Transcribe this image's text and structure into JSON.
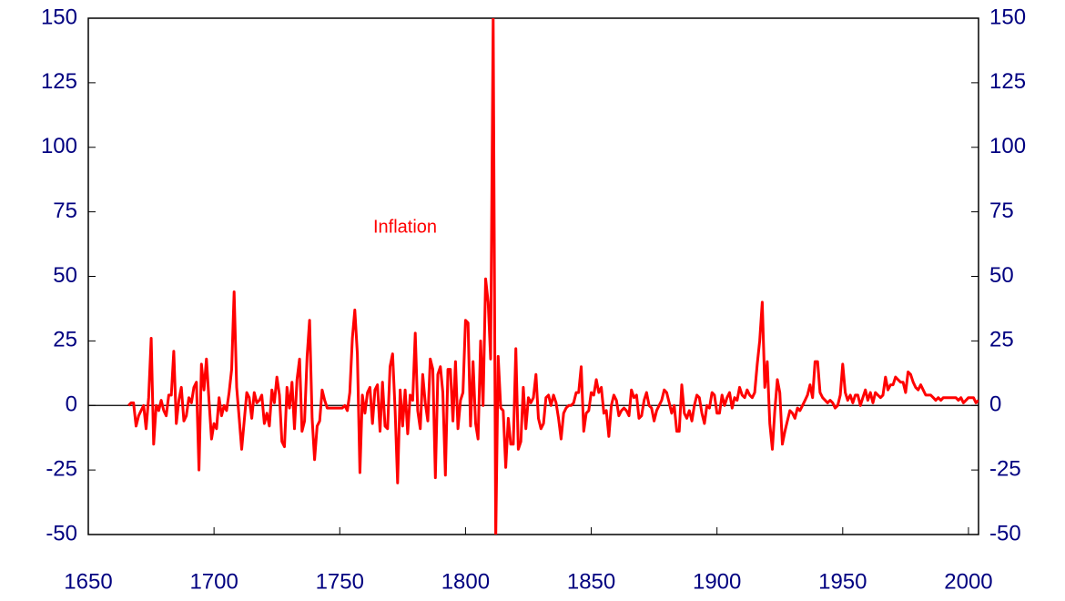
{
  "chart_data": {
    "type": "line",
    "series": [
      {
        "name": "Inflation",
        "color": "#ff0000",
        "values": [
          0,
          1,
          1,
          -8,
          -4,
          -2,
          0,
          -9,
          3,
          26,
          -15,
          0,
          -2,
          2,
          -2,
          -4,
          4,
          4,
          21,
          -7,
          2,
          7,
          -6,
          -4,
          3,
          1,
          7,
          9,
          -25,
          16,
          6,
          18,
          2,
          -13,
          -7,
          -9,
          3,
          -4,
          0,
          -2,
          5,
          14,
          44,
          7,
          -5,
          -17,
          -6,
          5,
          3,
          -5,
          5,
          1,
          2,
          4,
          -7,
          -3,
          -8,
          6,
          1,
          11,
          4,
          -14,
          -16,
          7,
          -1,
          9,
          -9,
          10,
          18,
          -10,
          -6,
          19,
          33,
          -5,
          -21,
          -8,
          -6,
          6,
          2,
          -1,
          -1,
          -1,
          -1,
          -1,
          -1,
          -1,
          0,
          -2,
          5,
          26,
          37,
          20,
          -26,
          4,
          -3,
          5,
          7,
          -7,
          6,
          8,
          -10,
          9,
          -8,
          -9,
          15,
          20,
          -2,
          -30,
          6,
          -8,
          6,
          -11,
          4,
          2,
          28,
          -2,
          -9,
          12,
          1,
          -6,
          18,
          14,
          -28,
          12,
          15,
          5,
          -27,
          14,
          14,
          -6,
          17,
          -9,
          2,
          5,
          33,
          32,
          -8,
          17,
          -7,
          -13,
          25,
          0,
          49,
          40,
          18,
          150,
          -52,
          19,
          -1,
          -2,
          -24,
          -5,
          -15,
          -15,
          22,
          -17,
          -14,
          7,
          -9,
          3,
          1,
          3,
          12,
          -5,
          -9,
          -7,
          3,
          4,
          0,
          4,
          1,
          -5,
          -13,
          -3,
          -1,
          0,
          0,
          1,
          5,
          5,
          15,
          -10,
          -3,
          -2,
          5,
          4,
          10,
          5,
          7,
          -3,
          -2,
          -12,
          0,
          4,
          2,
          -4,
          -2,
          -1,
          -2,
          -4,
          6,
          3,
          4,
          -5,
          -4,
          2,
          5,
          0,
          -1,
          -6,
          -2,
          0,
          2,
          6,
          5,
          1,
          -3,
          0,
          -10,
          -10,
          8,
          -3,
          -5,
          -2,
          -6,
          0,
          4,
          3,
          -3,
          -7,
          0,
          -1,
          5,
          4,
          -3,
          -3,
          4,
          0,
          3,
          5,
          -1,
          3,
          2,
          7,
          4,
          3,
          6,
          4,
          3,
          5,
          16,
          25,
          40,
          7,
          17,
          -7,
          -17,
          -2,
          10,
          5,
          -15,
          -10,
          -6,
          -2,
          -3,
          -5,
          -1,
          -2,
          0,
          2,
          4,
          8,
          3,
          17,
          17,
          5,
          3,
          2,
          1,
          2,
          1,
          -1,
          0,
          4,
          16,
          5,
          2,
          4,
          1,
          4,
          4,
          0,
          3,
          6,
          2,
          5,
          1,
          5,
          4,
          3,
          4,
          11,
          6,
          8,
          8,
          11,
          10,
          9,
          9,
          5,
          13,
          12,
          9,
          7,
          6,
          8,
          6,
          4,
          4,
          4,
          3,
          2,
          3,
          2,
          3,
          3,
          3,
          3,
          3,
          3,
          2,
          3,
          1,
          2,
          3,
          3,
          3,
          1,
          2
        ]
      }
    ],
    "x": [
      1666,
      1667,
      1668,
      1669,
      1670,
      1671,
      1672,
      1673,
      1674,
      1675,
      1676,
      1677,
      1678,
      1679,
      1680,
      1681,
      1682,
      1683,
      1684,
      1685,
      1686,
      1687,
      1688,
      1689,
      1690,
      1691,
      1692,
      1693,
      1694,
      1695,
      1696,
      1697,
      1698,
      1699,
      1700,
      1701,
      1702,
      1703,
      1704,
      1705,
      1706,
      1707,
      1708,
      1709,
      1710,
      1711,
      1712,
      1713,
      1714,
      1715,
      1716,
      1717,
      1718,
      1719,
      1720,
      1721,
      1722,
      1723,
      1724,
      1725,
      1726,
      1727,
      1728,
      1729,
      1730,
      1731,
      1732,
      1733,
      1734,
      1735,
      1736,
      1737,
      1738,
      1739,
      1740,
      1741,
      1742,
      1743,
      1744,
      1745,
      1746,
      1747,
      1748,
      1749,
      1750,
      1751,
      1752,
      1753,
      1754,
      1755,
      1756,
      1757,
      1758,
      1759,
      1760,
      1761,
      1762,
      1763,
      1764,
      1765,
      1766,
      1767,
      1768,
      1769,
      1770,
      1771,
      1772,
      1773,
      1774,
      1775,
      1776,
      1777,
      1778,
      1779,
      1780,
      1781,
      1782,
      1783,
      1784,
      1785,
      1786,
      1787,
      1788,
      1789,
      1790,
      1791,
      1792,
      1793,
      1794,
      1795,
      1796,
      1797,
      1798,
      1799,
      1800,
      1801,
      1802,
      1803,
      1804,
      1805,
      1806,
      1807,
      1808,
      1809,
      1810,
      1811,
      1812,
      1813,
      1814,
      1815,
      1816,
      1817,
      1818,
      1819,
      1820,
      1821,
      1822,
      1823,
      1824,
      1825,
      1826,
      1827,
      1828,
      1829,
      1830,
      1831,
      1832,
      1833,
      1834,
      1835,
      1836,
      1837,
      1838,
      1839,
      1840,
      1841,
      1842,
      1843,
      1844,
      1845,
      1846,
      1847,
      1848,
      1849,
      1850,
      1851,
      1852,
      1853,
      1854,
      1855,
      1856,
      1857,
      1858,
      1859,
      1860,
      1861,
      1862,
      1863,
      1864,
      1865,
      1866,
      1867,
      1868,
      1869,
      1870,
      1871,
      1872,
      1873,
      1874,
      1875,
      1876,
      1877,
      1878,
      1879,
      1880,
      1881,
      1882,
      1883,
      1884,
      1885,
      1886,
      1887,
      1888,
      1889,
      1890,
      1891,
      1892,
      1893,
      1894,
      1895,
      1896,
      1897,
      1898,
      1899,
      1900,
      1901,
      1902,
      1903,
      1904,
      1905,
      1906,
      1907,
      1908,
      1909,
      1910,
      1911,
      1912,
      1913,
      1914,
      1915,
      1916,
      1917,
      1918,
      1919,
      1920,
      1921,
      1922,
      1923,
      1924,
      1925,
      1926,
      1927,
      1928,
      1929,
      1930,
      1931,
      1932,
      1933,
      1934,
      1935,
      1936,
      1937,
      1938,
      1939,
      1940,
      1941,
      1942,
      1943,
      1944,
      1945,
      1946,
      1947,
      1948,
      1949,
      1950,
      1951,
      1952,
      1953,
      1954,
      1955,
      1956,
      1957,
      1958,
      1959,
      1960,
      1961,
      1962,
      1963,
      1964,
      1965,
      1966,
      1967,
      1968,
      1969,
      1970,
      1971,
      1972,
      1973,
      1974,
      1975,
      1976,
      1977,
      1978,
      1979,
      1980,
      1981,
      1982,
      1983,
      1984,
      1985,
      1986,
      1987,
      1988,
      1989,
      1990,
      1991,
      1992,
      1993,
      1994,
      1995,
      1996,
      1997,
      1998,
      1999,
      2000,
      2001,
      2002,
      2003,
      2004
    ],
    "xlim": [
      1650,
      2004
    ],
    "xticks": [
      1650,
      1700,
      1750,
      1800,
      1850,
      1900,
      1950,
      2000
    ],
    "ylim": [
      -50,
      150
    ],
    "yticks": [
      -50,
      -25,
      0,
      25,
      50,
      75,
      100,
      125,
      150
    ],
    "y2lim": [
      -50,
      150
    ],
    "y2ticks": [
      -50,
      -25,
      0,
      25,
      50,
      75,
      100,
      125,
      150
    ],
    "zero_line": true
  }
}
